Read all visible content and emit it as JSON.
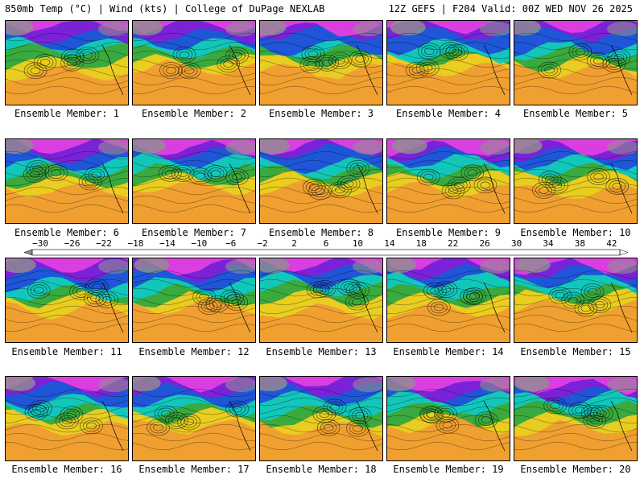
{
  "header": {
    "left": "850mb Temp (°C) | Wind (kts) | College of DuPage NEXLAB",
    "right": "12Z GEFS | F204 Valid: 00Z WED NOV 26 2025"
  },
  "members": [
    "Ensemble Member: 1",
    "Ensemble Member: 2",
    "Ensemble Member: 3",
    "Ensemble Member: 4",
    "Ensemble Member: 5",
    "Ensemble Member: 6",
    "Ensemble Member: 7",
    "Ensemble Member: 8",
    "Ensemble Member: 9",
    "Ensemble Member: 10",
    "Ensemble Member: 11",
    "Ensemble Member: 12",
    "Ensemble Member: 13",
    "Ensemble Member: 14",
    "Ensemble Member: 15",
    "Ensemble Member: 16",
    "Ensemble Member: 17",
    "Ensemble Member: 18",
    "Ensemble Member: 19",
    "Ensemble Member: 20"
  ],
  "colorbar": {
    "ticks": [
      "−30",
      "−26",
      "−22",
      "−18",
      "−14",
      "−10",
      "−6",
      "−2",
      "2",
      "6",
      "10",
      "14",
      "18",
      "22",
      "26",
      "30",
      "34",
      "38",
      "42"
    ],
    "colors": [
      "#8c8c8c",
      "#a8a8a8",
      "#c4c4c4",
      "#d8d0f0",
      "#c8a0f0",
      "#e060e0",
      "#c020e0",
      "#9010e0",
      "#6010d0",
      "#3020c0",
      "#2040d8",
      "#2080e8",
      "#10b0e8",
      "#10d0d0",
      "#10c8a0",
      "#10b060",
      "#20a030",
      "#60b020",
      "#a0c810",
      "#e0e000",
      "#f8e020",
      "#f8c020",
      "#f0a020",
      "#f08020",
      "#f06020",
      "#f04020",
      "#e02020",
      "#c01010",
      "#a00808",
      "#c01040",
      "#d02080",
      "#e040b0",
      "#f070d0",
      "#f0a0e0",
      "#f0d0f0",
      "#ffffff"
    ]
  },
  "panel_colors": {
    "ocean_warm": "#f0a030",
    "mid_yellow": "#e8d020",
    "green": "#30a840",
    "teal": "#10c8c0",
    "blue": "#2050d8",
    "purple": "#8020d8",
    "magenta": "#e040e0",
    "gray": "#909090"
  }
}
